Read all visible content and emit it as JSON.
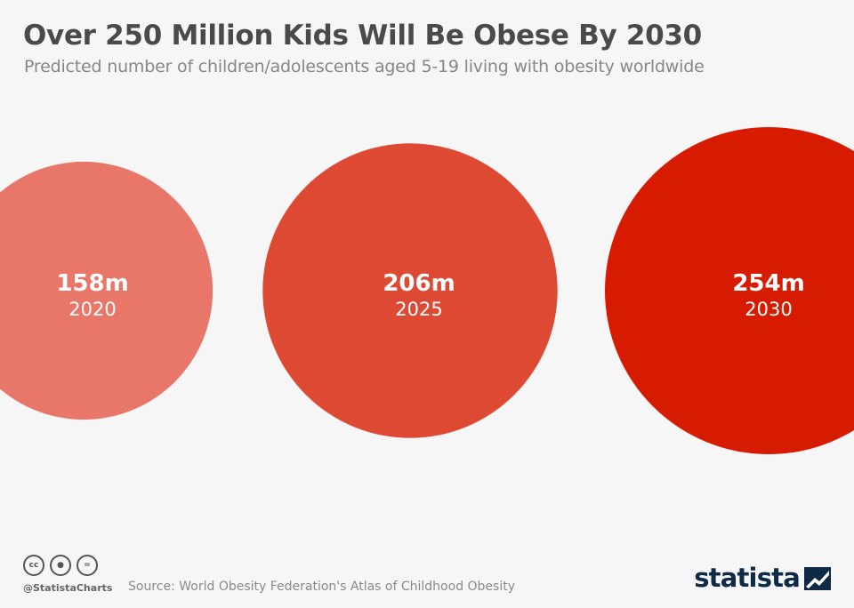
{
  "header": {
    "title": "Over 250 Million Kids Will Be Obese By 2030",
    "subtitle": "Predicted number of children/adolescents aged 5-19 living with obesity worldwide"
  },
  "chart_data": {
    "type": "bubble",
    "title": "Over 250 Million Kids Will Be Obese By 2030",
    "subtitle": "Predicted number of children/adolescents aged 5-19 living with obesity worldwide",
    "unit": "million children",
    "categories": [
      "2020",
      "2025",
      "2030"
    ],
    "values": [
      158,
      206,
      254
    ],
    "value_labels": [
      "158m",
      "206m",
      "254m"
    ],
    "colors": [
      "#e8776a",
      "#de4934",
      "#d71b00"
    ]
  },
  "footer": {
    "handle": "@StatistaCharts",
    "source": "Source: World Obesity Federation's Atlas of Childhood Obesity",
    "license_icons": [
      {
        "icon": "cc-icon",
        "glyph": "cc"
      },
      {
        "icon": "by-icon",
        "glyph": "●"
      },
      {
        "icon": "nd-icon",
        "glyph": "="
      }
    ],
    "brand": "statista"
  }
}
